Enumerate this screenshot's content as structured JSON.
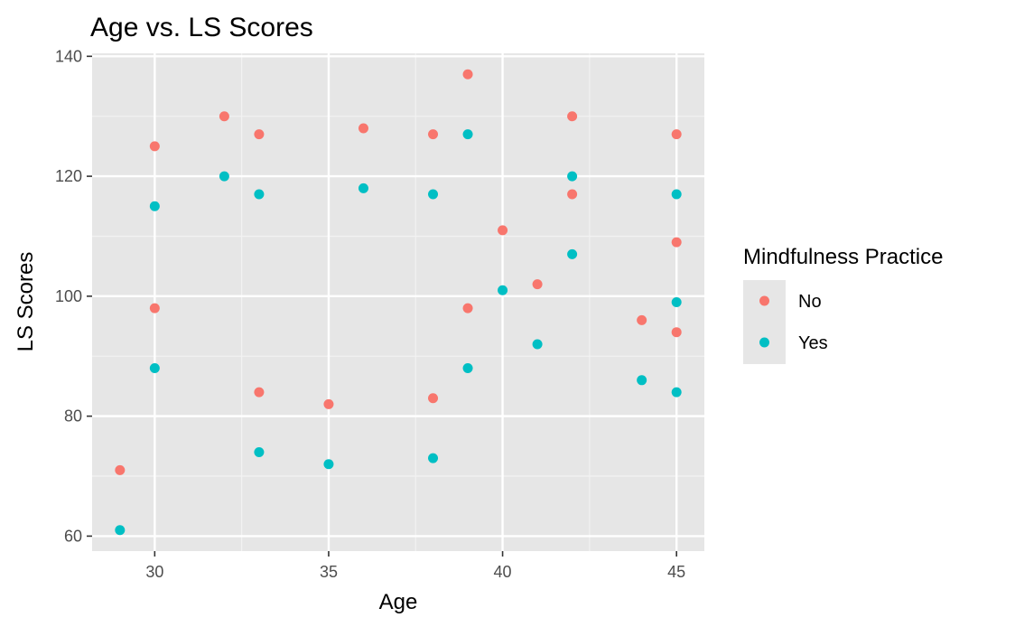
{
  "chart_data": {
    "type": "scatter",
    "title": "Age vs. LS Scores",
    "xlabel": "Age",
    "ylabel": "LS Scores",
    "xlim": [
      28.2,
      45.8
    ],
    "ylim": [
      57.5,
      140.5
    ],
    "x_ticks": [
      30,
      35,
      40,
      45
    ],
    "y_ticks": [
      60,
      80,
      100,
      120,
      140
    ],
    "grid": true,
    "legend": {
      "title": "Mindfulness Practice",
      "placement": "right"
    },
    "series": [
      {
        "name": "No",
        "color": "#f8766d",
        "points": [
          {
            "x": 29,
            "y": 71
          },
          {
            "x": 30,
            "y": 125
          },
          {
            "x": 30,
            "y": 98
          },
          {
            "x": 32,
            "y": 130
          },
          {
            "x": 33,
            "y": 127
          },
          {
            "x": 33,
            "y": 84
          },
          {
            "x": 35,
            "y": 82
          },
          {
            "x": 36,
            "y": 128
          },
          {
            "x": 38,
            "y": 127
          },
          {
            "x": 38,
            "y": 83
          },
          {
            "x": 39,
            "y": 137
          },
          {
            "x": 39,
            "y": 98
          },
          {
            "x": 40,
            "y": 111
          },
          {
            "x": 41,
            "y": 102
          },
          {
            "x": 42,
            "y": 130
          },
          {
            "x": 42,
            "y": 117
          },
          {
            "x": 44,
            "y": 96
          },
          {
            "x": 45,
            "y": 127
          },
          {
            "x": 45,
            "y": 109
          },
          {
            "x": 45,
            "y": 94
          }
        ]
      },
      {
        "name": "Yes",
        "color": "#00bfc4",
        "points": [
          {
            "x": 29,
            "y": 61
          },
          {
            "x": 30,
            "y": 115
          },
          {
            "x": 30,
            "y": 88
          },
          {
            "x": 32,
            "y": 120
          },
          {
            "x": 33,
            "y": 117
          },
          {
            "x": 33,
            "y": 74
          },
          {
            "x": 35,
            "y": 72
          },
          {
            "x": 36,
            "y": 118
          },
          {
            "x": 38,
            "y": 117
          },
          {
            "x": 38,
            "y": 73
          },
          {
            "x": 39,
            "y": 127
          },
          {
            "x": 39,
            "y": 88
          },
          {
            "x": 40,
            "y": 101
          },
          {
            "x": 41,
            "y": 92
          },
          {
            "x": 42,
            "y": 120
          },
          {
            "x": 42,
            "y": 107
          },
          {
            "x": 44,
            "y": 86
          },
          {
            "x": 45,
            "y": 117
          },
          {
            "x": 45,
            "y": 99
          },
          {
            "x": 45,
            "y": 84
          }
        ]
      }
    ]
  }
}
